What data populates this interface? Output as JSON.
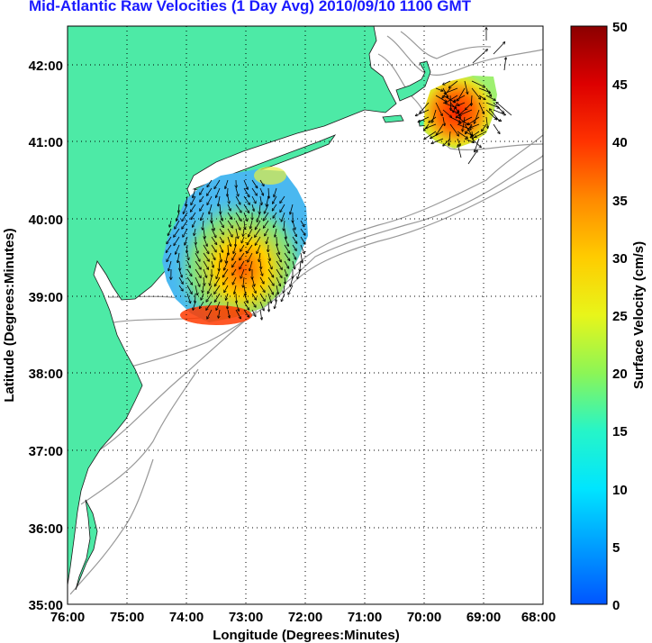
{
  "title": "Mid-Atlantic Raw Velocities (1 Day Avg) 2010/09/10 1100 GMT",
  "axes": {
    "xlabel": "Longitude (Degrees:Minutes)",
    "ylabel": "Latitude (Degrees:Minutes)",
    "x_ticks": [
      "76:00",
      "75:00",
      "74:00",
      "73:00",
      "72:00",
      "71:00",
      "70:00",
      "69:00",
      "68:00"
    ],
    "y_ticks": [
      "42:00",
      "41:00",
      "40:00",
      "39:00",
      "38:00",
      "37:00",
      "36:00",
      "35:00"
    ]
  },
  "colorbar": {
    "label": "Surface Velocity (cm/s)",
    "ticks": [
      "50",
      "45",
      "40",
      "35",
      "30",
      "25",
      "20",
      "15",
      "10",
      "5",
      "0"
    ],
    "min": 0,
    "max": 50
  },
  "colors": {
    "land": "#4deaa6",
    "water": "#ffffff",
    "bathymetry": "#999999",
    "title": "#1a1aff"
  }
}
